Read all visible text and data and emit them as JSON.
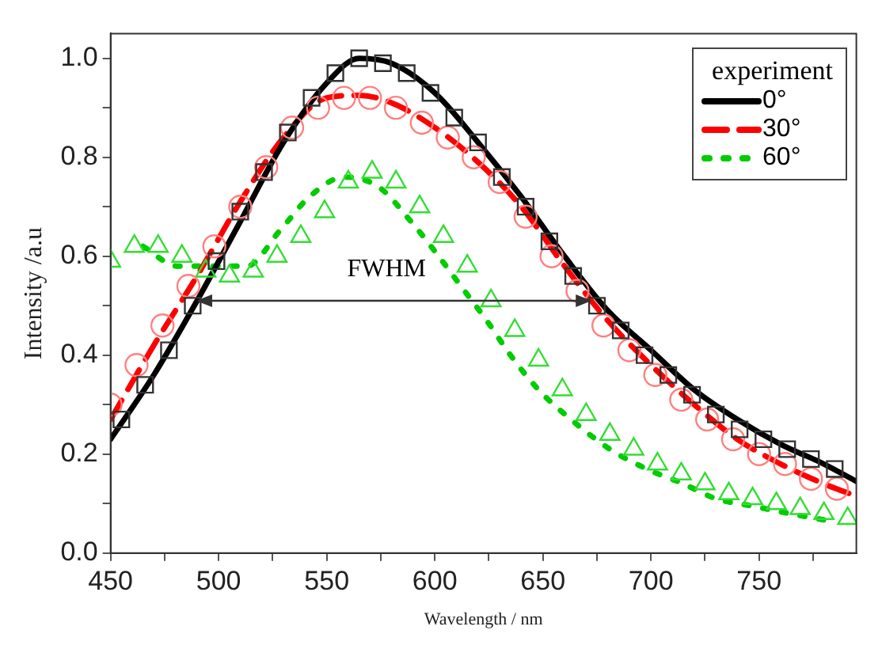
{
  "chart_data": {
    "type": "line",
    "xlabel": "Wavelength / nm",
    "ylabel": "Intensity /a.u",
    "legend_title": "experiment",
    "legend": "top right",
    "grid": false,
    "xlim": [
      450,
      795
    ],
    "xticks": [
      450,
      {
        "value": 475,
        "label": null
      },
      500,
      {
        "value": 525,
        "label": null
      },
      550,
      {
        "value": 575,
        "label": null
      },
      600,
      {
        "value": 625,
        "label": null
      },
      650,
      {
        "value": 675,
        "label": null
      },
      700,
      {
        "value": 725,
        "label": null
      },
      750,
      {
        "value": 775,
        "label": null
      }
    ],
    "ylim": [
      0,
      1.05
    ],
    "yticks": [
      "0.0",
      {
        "value": 0.1,
        "label": null
      },
      0.2,
      {
        "value": 0.3,
        "label": null
      },
      0.4,
      {
        "value": 0.5,
        "label": null
      },
      0.6,
      {
        "value": 0.7,
        "label": null
      },
      0.8,
      {
        "value": 0.9,
        "label": null
      },
      "1.0"
    ],
    "annotations": [
      "FWHM"
    ],
    "series": [
      {
        "type": "scatter",
        "marker": "square",
        "color": "#333333",
        "x": [
          455,
          466,
          477,
          488,
          499,
          510,
          521,
          532,
          543,
          554,
          565,
          576,
          587,
          598,
          609,
          620,
          631,
          642,
          653,
          664,
          675,
          686,
          697,
          708,
          719,
          730,
          741,
          752,
          763,
          774,
          785
        ],
        "values": [
          0.27,
          0.34,
          0.41,
          0.5,
          0.59,
          0.69,
          0.77,
          0.85,
          0.92,
          0.97,
          1.0,
          0.99,
          0.97,
          0.93,
          0.88,
          0.83,
          0.76,
          0.7,
          0.63,
          0.56,
          0.5,
          0.45,
          0.4,
          0.36,
          0.32,
          0.28,
          0.25,
          0.23,
          0.21,
          0.19,
          0.17
        ]
      },
      {
        "type": "scatter",
        "marker": "circle",
        "color": "#ff8080",
        "x": [
          450,
          462,
          474,
          486,
          498,
          510,
          522,
          534,
          546,
          558,
          570,
          582,
          594,
          606,
          618,
          630,
          642,
          654,
          666,
          678,
          690,
          702,
          714,
          726,
          738,
          750,
          762,
          774,
          786
        ],
        "values": [
          0.3,
          0.38,
          0.46,
          0.54,
          0.62,
          0.7,
          0.78,
          0.86,
          0.9,
          0.92,
          0.92,
          0.9,
          0.87,
          0.84,
          0.8,
          0.75,
          0.68,
          0.6,
          0.53,
          0.46,
          0.41,
          0.36,
          0.31,
          0.27,
          0.23,
          0.2,
          0.18,
          0.15,
          0.13
        ]
      },
      {
        "type": "scatter",
        "marker": "triangle",
        "color": "#33dd33",
        "x": [
          450,
          461,
          472,
          483,
          494,
          505,
          516,
          527,
          538,
          549,
          560,
          571,
          582,
          593,
          604,
          615,
          626,
          637,
          648,
          659,
          670,
          681,
          692,
          703,
          714,
          725,
          736,
          747,
          758,
          769,
          780,
          791
        ],
        "values": [
          0.59,
          0.62,
          0.62,
          0.6,
          0.57,
          0.56,
          0.57,
          0.6,
          0.64,
          0.69,
          0.75,
          0.77,
          0.75,
          0.7,
          0.64,
          0.58,
          0.51,
          0.45,
          0.39,
          0.33,
          0.28,
          0.24,
          0.21,
          0.18,
          0.16,
          0.14,
          0.12,
          0.11,
          0.1,
          0.09,
          0.08,
          0.07
        ]
      },
      {
        "name": "0°",
        "line_style": "solid",
        "marker": "none",
        "color": "#000000",
        "x": [
          450,
          470,
          490,
          510,
          530,
          550,
          565,
          580,
          600,
          620,
          640,
          660,
          680,
          700,
          720,
          740,
          760,
          780,
          795
        ],
        "values": [
          0.23,
          0.36,
          0.51,
          0.67,
          0.83,
          0.95,
          1.0,
          0.99,
          0.93,
          0.83,
          0.72,
          0.6,
          0.49,
          0.41,
          0.33,
          0.27,
          0.22,
          0.18,
          0.145
        ]
      },
      {
        "name": "30°",
        "line_style": "dashed",
        "marker": "none",
        "color": "#ff0000",
        "x": [
          450,
          470,
          490,
          510,
          530,
          550,
          565,
          580,
          600,
          620,
          640,
          660,
          680,
          700,
          720,
          740,
          760,
          780,
          795
        ],
        "values": [
          0.27,
          0.42,
          0.56,
          0.71,
          0.84,
          0.92,
          0.925,
          0.91,
          0.86,
          0.79,
          0.7,
          0.58,
          0.47,
          0.38,
          0.3,
          0.23,
          0.18,
          0.14,
          0.115
        ]
      },
      {
        "name": "60°",
        "line_style": "dotted",
        "marker": "none",
        "color": "#00cc00",
        "x": [
          465,
          481,
          513,
          528,
          542,
          558,
          574,
          589,
          600,
          612,
          624,
          635,
          648,
          663,
          681,
          698,
          715,
          730,
          747,
          764,
          780
        ],
        "values": [
          0.62,
          0.58,
          0.58,
          0.65,
          0.72,
          0.76,
          0.74,
          0.67,
          0.61,
          0.54,
          0.47,
          0.4,
          0.33,
          0.27,
          0.21,
          0.17,
          0.14,
          0.11,
          0.095,
          0.08,
          0.067
        ]
      }
    ]
  }
}
